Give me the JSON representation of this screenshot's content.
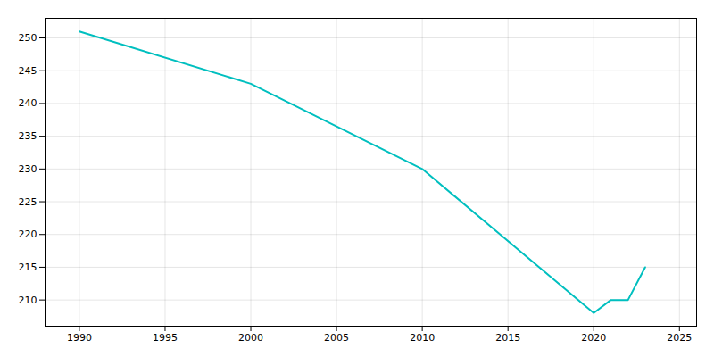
{
  "chart_data": {
    "type": "line",
    "x": [
      1990,
      2000,
      2010,
      2020,
      2021,
      2022,
      2023
    ],
    "values": [
      251,
      243,
      230,
      208,
      210,
      210,
      215
    ],
    "color": "#00BFBF",
    "xlim": [
      1988,
      2026
    ],
    "ylim": [
      206,
      253
    ],
    "xticks": [
      1990,
      1995,
      2000,
      2005,
      2010,
      2015,
      2020,
      2025
    ],
    "yticks": [
      210,
      215,
      220,
      225,
      230,
      235,
      240,
      245,
      250
    ],
    "grid": true
  }
}
